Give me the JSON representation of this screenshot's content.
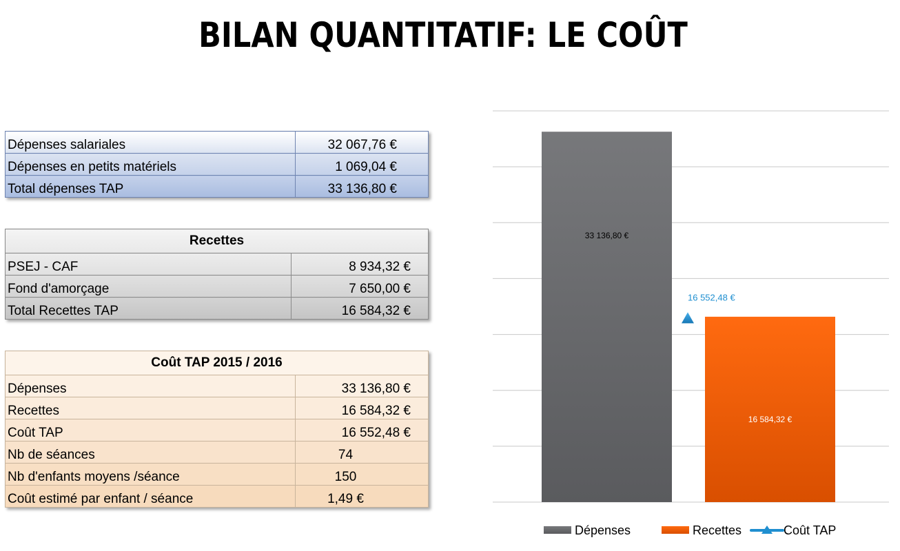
{
  "title": "BILAN QUANTITATIF: LE COÛT",
  "depenses_table": {
    "rows": [
      {
        "label": "Dépenses salariales",
        "value": "32 067,76 €"
      },
      {
        "label": "Dépenses en petits matériels",
        "value": "1 069,04 €"
      },
      {
        "label": "Total dépenses TAP",
        "value": "33 136,80 €"
      }
    ]
  },
  "recettes_table": {
    "header": "Recettes",
    "rows": [
      {
        "label": "PSEJ - CAF",
        "value": "8 934,32 €"
      },
      {
        "label": "Fond d'amorçage",
        "value": "7 650,00 €"
      },
      {
        "label": "Total Recettes TAP",
        "value": "16 584,32 €"
      }
    ]
  },
  "cout_table": {
    "header": "Coût TAP 2015 / 2016",
    "rows": [
      {
        "label": "Dépenses",
        "value": "33 136,80 €"
      },
      {
        "label": "Recettes",
        "value": "16 584,32 €"
      },
      {
        "label": "Coût TAP",
        "value": "16 552,48 €"
      },
      {
        "label": "Nb de séances",
        "value": "74"
      },
      {
        "label": "Nb d'enfants moyens /séance",
        "value": "150"
      },
      {
        "label": "Coût estimé par enfant / séance",
        "value": "1,49 €"
      }
    ]
  },
  "chart_data": {
    "type": "bar",
    "ylim": [
      0,
      35000
    ],
    "grid": true,
    "legend_position": "bottom",
    "series": [
      {
        "name": "Dépenses",
        "type": "bar",
        "value": 33136.8,
        "label": "33 136,80 €",
        "color": "#6e6f72"
      },
      {
        "name": "Recettes",
        "type": "bar",
        "value": 16584.32,
        "label": "16 584,32 €",
        "color": "#ff6a10"
      },
      {
        "name": "Coût TAP",
        "type": "marker",
        "value": 16552.48,
        "label": "16 552,48 €",
        "color": "#1f8fd0"
      }
    ]
  }
}
